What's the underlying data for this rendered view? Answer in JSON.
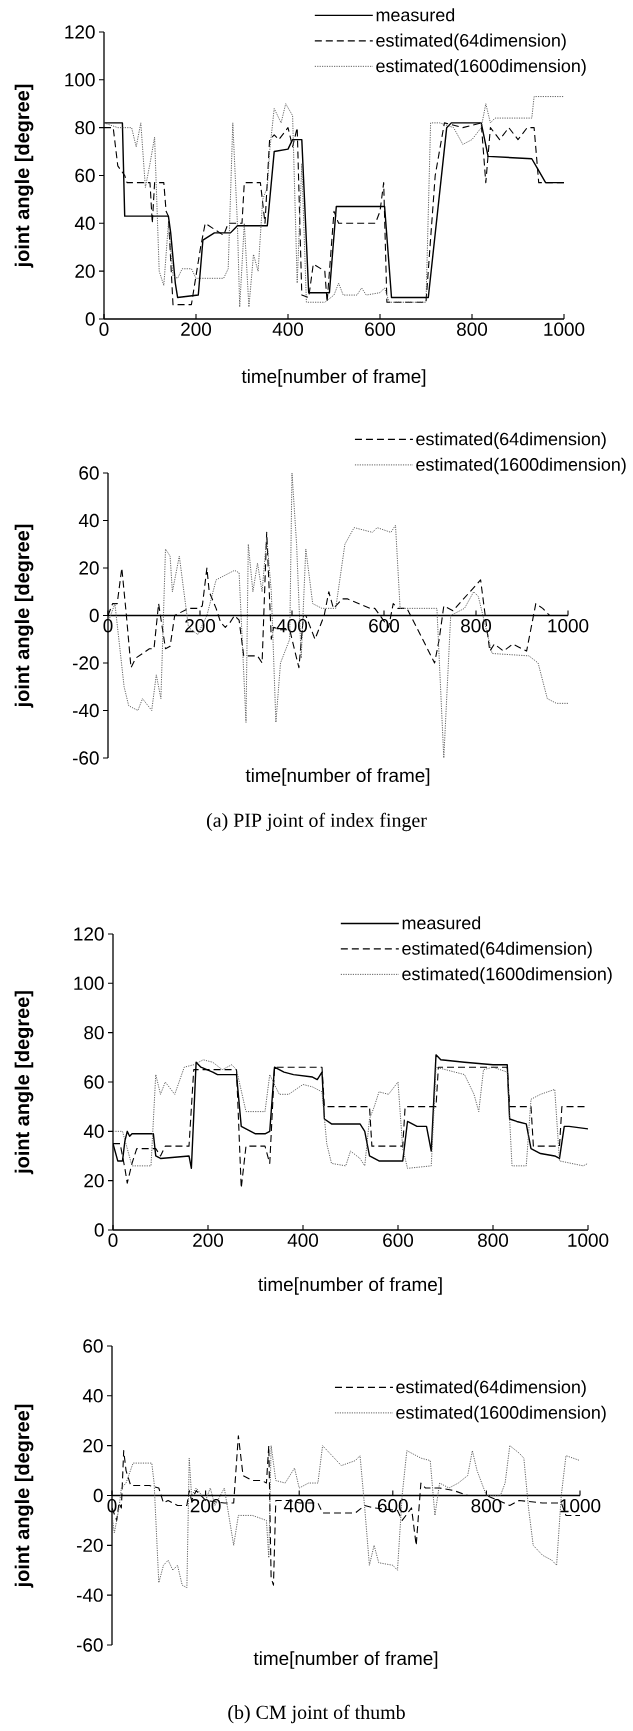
{
  "chart_data": [
    {
      "type": "line",
      "xlabel": "time[number of frame]",
      "ylabel": "joint angle [degree]",
      "xlim": [
        0,
        1000
      ],
      "ylim": [
        0,
        120
      ],
      "xticks": [
        0,
        200,
        400,
        600,
        800,
        1000
      ],
      "yticks": [
        0,
        20,
        40,
        60,
        80,
        100,
        120
      ],
      "legend": "top right",
      "series": [
        {
          "name": "measured",
          "color": "#000000",
          "line_style": "solid",
          "x": [
            0,
            40,
            45,
            140,
            145,
            155,
            160,
            205,
            215,
            240,
            275,
            290,
            355,
            370,
            400,
            410,
            430,
            445,
            490,
            505,
            610,
            625,
            705,
            745,
            755,
            820,
            835,
            930,
            945,
            960,
            1000
          ],
          "values": [
            82,
            82,
            43,
            43,
            36,
            15,
            9,
            10,
            33,
            36,
            36,
            39,
            39,
            70,
            71,
            75,
            75,
            11,
            11,
            47,
            47,
            9,
            9,
            80,
            82,
            82,
            68,
            67,
            62,
            57,
            57
          ]
        },
        {
          "name": "estimated(64dimension)",
          "color": "#000000",
          "line_style": "dashed",
          "x": [
            0,
            20,
            30,
            45,
            50,
            100,
            105,
            110,
            130,
            135,
            140,
            150,
            190,
            210,
            220,
            260,
            270,
            300,
            305,
            340,
            350,
            360,
            370,
            380,
            400,
            410,
            420,
            430,
            445,
            455,
            480,
            485,
            500,
            510,
            590,
            600,
            608,
            615,
            700,
            720,
            740,
            780,
            820,
            830,
            840,
            860,
            880,
            900,
            920,
            935,
            945,
            1000
          ],
          "values": [
            80,
            80,
            64,
            60,
            57,
            57,
            40,
            57,
            57,
            45,
            43,
            6,
            6,
            30,
            40,
            35,
            40,
            40,
            57,
            57,
            40,
            75,
            77,
            75,
            80,
            72,
            80,
            10,
            9,
            23,
            20,
            7,
            45,
            40,
            40,
            45,
            57,
            7,
            7,
            60,
            82,
            80,
            82,
            57,
            80,
            75,
            80,
            75,
            80,
            80,
            57,
            57
          ]
        },
        {
          "name": "estimated(1600dimension)",
          "color": "#505050",
          "line_style": "dotted",
          "x": [
            0,
            30,
            60,
            70,
            80,
            90,
            100,
            110,
            120,
            130,
            140,
            150,
            160,
            170,
            190,
            200,
            260,
            270,
            280,
            290,
            295,
            305,
            315,
            325,
            335,
            345,
            355,
            360,
            370,
            385,
            395,
            410,
            420,
            430,
            440,
            480,
            500,
            510,
            520,
            550,
            560,
            570,
            600,
            610,
            620,
            700,
            710,
            730,
            760,
            780,
            800,
            820,
            830,
            840,
            850,
            930,
            935,
            1000
          ],
          "values": [
            82,
            80,
            80,
            72,
            82,
            55,
            65,
            76,
            20,
            14,
            40,
            18,
            17,
            21,
            21,
            17,
            17,
            21,
            82,
            40,
            5,
            40,
            5,
            27,
            20,
            50,
            55,
            70,
            88,
            82,
            90,
            85,
            15,
            65,
            7,
            7,
            10,
            15,
            10,
            10,
            13,
            10,
            11,
            13,
            7,
            7,
            82,
            82,
            80,
            73,
            75,
            80,
            90,
            82,
            84,
            84,
            93,
            93
          ]
        }
      ]
    },
    {
      "type": "line",
      "xlabel": "time[number of frame]",
      "ylabel": "joint angle [degree]",
      "xlim": [
        0,
        1000
      ],
      "ylim": [
        -60,
        60
      ],
      "xticks": [
        0,
        200,
        400,
        600,
        800,
        1000
      ],
      "yticks": [
        -60,
        -40,
        -20,
        0,
        20,
        40,
        60
      ],
      "legend": "top right",
      "annotations": [
        "(a) PIP joint of index finger"
      ],
      "series": [
        {
          "name": "estimated(64dimension)",
          "color": "#000000",
          "line_style": "dashed",
          "x": [
            0,
            10,
            20,
            30,
            40,
            50,
            60,
            90,
            100,
            110,
            125,
            135,
            145,
            175,
            195,
            205,
            215,
            220,
            235,
            245,
            255,
            265,
            275,
            285,
            295,
            325,
            335,
            345,
            355,
            360,
            375,
            395,
            415,
            425,
            430,
            450,
            470,
            480,
            490,
            510,
            520,
            570,
            580,
            610,
            620,
            630,
            650,
            710,
            720,
            730,
            750,
            810,
            820,
            830,
            840,
            860,
            880,
            910,
            930,
            945,
            960,
            970
          ],
          "values": [
            0,
            5,
            5,
            20,
            0,
            -22,
            -18,
            -14,
            -14,
            5,
            -14,
            -13,
            0,
            3,
            3,
            4,
            20,
            10,
            3,
            -3,
            -5,
            -3,
            0,
            -2,
            -17,
            -17,
            -20,
            35,
            -10,
            -5,
            -6,
            -6,
            -22,
            0,
            0,
            -10,
            0,
            10,
            3,
            7,
            7,
            3,
            3,
            -5,
            5,
            3,
            3,
            -20,
            -10,
            4,
            2,
            15,
            0,
            -15,
            -12,
            -15,
            -12,
            -15,
            5,
            3,
            0,
            0
          ]
        },
        {
          "name": "estimated(1600dimension)",
          "color": "#505050",
          "line_style": "dotted",
          "x": [
            0,
            15,
            35,
            45,
            65,
            75,
            95,
            105,
            115,
            125,
            135,
            140,
            145,
            155,
            175,
            195,
            215,
            235,
            275,
            285,
            300,
            305,
            315,
            325,
            335,
            345,
            355,
            365,
            375,
            395,
            400,
            410,
            420,
            430,
            445,
            465,
            495,
            515,
            535,
            575,
            585,
            615,
            625,
            635,
            715,
            730,
            745,
            775,
            795,
            805,
            815,
            835,
            915,
            935,
            955,
            975,
            1000
          ],
          "values": [
            -3,
            5,
            -30,
            -38,
            -40,
            -35,
            -40,
            -25,
            -35,
            28,
            25,
            10,
            15,
            25,
            -5,
            -8,
            0,
            15,
            19,
            18,
            -45,
            30,
            10,
            22,
            10,
            33,
            10,
            -45,
            -20,
            -10,
            60,
            30,
            -18,
            28,
            5,
            3,
            3,
            30,
            37,
            35,
            37,
            35,
            38,
            3,
            3,
            -60,
            0,
            3,
            10,
            8,
            0,
            -16,
            -17,
            -20,
            -35,
            -37,
            -37
          ]
        }
      ]
    },
    {
      "type": "line",
      "xlabel": "time[number of frame]",
      "ylabel": "joint angle [degree]",
      "xlim": [
        0,
        1000
      ],
      "ylim": [
        0,
        120
      ],
      "xticks": [
        0,
        200,
        400,
        600,
        800,
        1000
      ],
      "yticks": [
        0,
        20,
        40,
        60,
        80,
        100,
        120
      ],
      "legend": "top right",
      "series": [
        {
          "name": "measured",
          "color": "#000000",
          "line_style": "solid",
          "x": [
            0,
            10,
            20,
            25,
            30,
            35,
            40,
            85,
            90,
            100,
            160,
            165,
            175,
            185,
            210,
            220,
            260,
            270,
            280,
            300,
            320,
            330,
            340,
            360,
            380,
            420,
            430,
            440,
            445,
            460,
            520,
            530,
            540,
            560,
            610,
            620,
            640,
            660,
            670,
            680,
            690,
            740,
            800,
            830,
            835,
            850,
            870,
            880,
            900,
            930,
            940,
            950,
            960,
            1000
          ],
          "values": [
            35,
            28,
            28,
            36,
            40,
            38,
            39,
            39,
            30,
            29,
            30,
            25,
            68,
            66,
            64,
            63,
            63,
            42,
            41,
            39,
            39,
            40,
            66,
            64,
            63,
            62,
            61,
            64,
            45,
            43,
            43,
            40,
            30,
            28,
            28,
            44,
            42,
            42,
            32,
            71,
            69,
            68,
            67,
            67,
            45,
            44,
            43,
            33,
            31,
            30,
            29,
            42,
            42,
            41
          ]
        },
        {
          "name": "estimated(64dimension)",
          "color": "#000000",
          "line_style": "dashed",
          "x": [
            0,
            15,
            25,
            30,
            40,
            50,
            90,
            100,
            110,
            160,
            170,
            260,
            270,
            280,
            320,
            330,
            340,
            440,
            445,
            540,
            545,
            610,
            615,
            680,
            685,
            830,
            835,
            880,
            885,
            940,
            945,
            1000
          ],
          "values": [
            35,
            35,
            25,
            19,
            27,
            33,
            33,
            30,
            34,
            34,
            65,
            65,
            17,
            34,
            34,
            27,
            66,
            66,
            50,
            50,
            34,
            34,
            50,
            50,
            66,
            66,
            50,
            50,
            34,
            34,
            50,
            50
          ]
        },
        {
          "name": "estimated(1600dimension)",
          "color": "#505050",
          "line_style": "dotted",
          "x": [
            0,
            20,
            40,
            80,
            90,
            100,
            110,
            130,
            150,
            170,
            190,
            210,
            230,
            250,
            260,
            280,
            320,
            330,
            350,
            370,
            400,
            420,
            440,
            450,
            460,
            490,
            500,
            520,
            530,
            540,
            550,
            560,
            580,
            600,
            610,
            620,
            670,
            680,
            720,
            740,
            760,
            770,
            780,
            800,
            830,
            840,
            870,
            880,
            900,
            930,
            940,
            990,
            1000
          ],
          "values": [
            40,
            40,
            26,
            26,
            63,
            55,
            60,
            55,
            66,
            67,
            69,
            68,
            65,
            67,
            65,
            48,
            48,
            63,
            55,
            55,
            59,
            58,
            56,
            35,
            27,
            26,
            32,
            29,
            26,
            45,
            50,
            56,
            55,
            60,
            33,
            25,
            26,
            66,
            64,
            63,
            55,
            48,
            65,
            66,
            64,
            26,
            26,
            53,
            55,
            57,
            28,
            26,
            27
          ]
        }
      ]
    },
    {
      "type": "line",
      "xlabel": "time[number of frame]",
      "ylabel": "joint angle [degree]",
      "xlim": [
        0,
        1000
      ],
      "ylim": [
        -60,
        60
      ],
      "xticks": [
        0,
        200,
        400,
        600,
        800,
        1000
      ],
      "yticks": [
        -60,
        -40,
        -20,
        0,
        20,
        40,
        60
      ],
      "legend": "top right",
      "annotations": [
        "(b) CM joint of thumb"
      ],
      "series": [
        {
          "name": "estimated(64dimension)",
          "color": "#000000",
          "line_style": "dashed",
          "x": [
            0,
            10,
            15,
            20,
            25,
            30,
            40,
            80,
            100,
            110,
            120,
            130,
            140,
            160,
            165,
            170,
            180,
            200,
            240,
            260,
            270,
            280,
            300,
            320,
            330,
            335,
            340,
            345,
            350,
            380,
            400,
            440,
            450,
            520,
            540,
            560,
            610,
            620,
            640,
            650,
            660,
            670,
            700,
            730,
            760,
            800,
            850,
            870,
            920,
            960,
            970,
            1000
          ],
          "values": [
            -5,
            -10,
            -3,
            -5,
            18,
            10,
            4,
            4,
            3,
            -3,
            -2,
            -3,
            -4,
            -4,
            2,
            -2,
            2,
            -2,
            -3,
            -3,
            24,
            8,
            6,
            6,
            5,
            20,
            -33,
            -36,
            -2,
            -2,
            -3,
            -3,
            -7,
            -7,
            -4,
            -5,
            -6,
            -10,
            -5,
            -20,
            5,
            3,
            3,
            2,
            0,
            0,
            -4,
            -2,
            -3,
            -3,
            -8,
            -8
          ]
        },
        {
          "name": "estimated(1600dimension)",
          "color": "#505050",
          "line_style": "dotted",
          "x": [
            0,
            5,
            15,
            20,
            30,
            45,
            85,
            90,
            100,
            110,
            120,
            130,
            140,
            150,
            160,
            165,
            170,
            180,
            200,
            210,
            220,
            240,
            260,
            270,
            300,
            330,
            335,
            340,
            350,
            370,
            390,
            400,
            420,
            440,
            450,
            470,
            490,
            520,
            530,
            540,
            550,
            560,
            570,
            600,
            610,
            620,
            630,
            660,
            680,
            690,
            700,
            720,
            740,
            760,
            770,
            780,
            790,
            800,
            830,
            840,
            850,
            870,
            880,
            890,
            900,
            920,
            940,
            950,
            960,
            970,
            1000
          ],
          "values": [
            -8,
            -15,
            -5,
            3,
            5,
            13,
            13,
            5,
            -35,
            -28,
            -26,
            -30,
            -28,
            -36,
            -37,
            15,
            0,
            3,
            -2,
            3,
            -4,
            3,
            -20,
            -8,
            -8,
            -10,
            -25,
            20,
            6,
            5,
            11,
            3,
            5,
            5,
            20,
            16,
            12,
            14,
            16,
            -5,
            -28,
            -20,
            -27,
            -28,
            -30,
            0,
            18,
            15,
            14,
            -8,
            5,
            3,
            5,
            8,
            18,
            10,
            5,
            0,
            0,
            5,
            20,
            17,
            15,
            -5,
            -20,
            -24,
            -26,
            -28,
            0,
            16,
            14
          ]
        }
      ]
    }
  ]
}
